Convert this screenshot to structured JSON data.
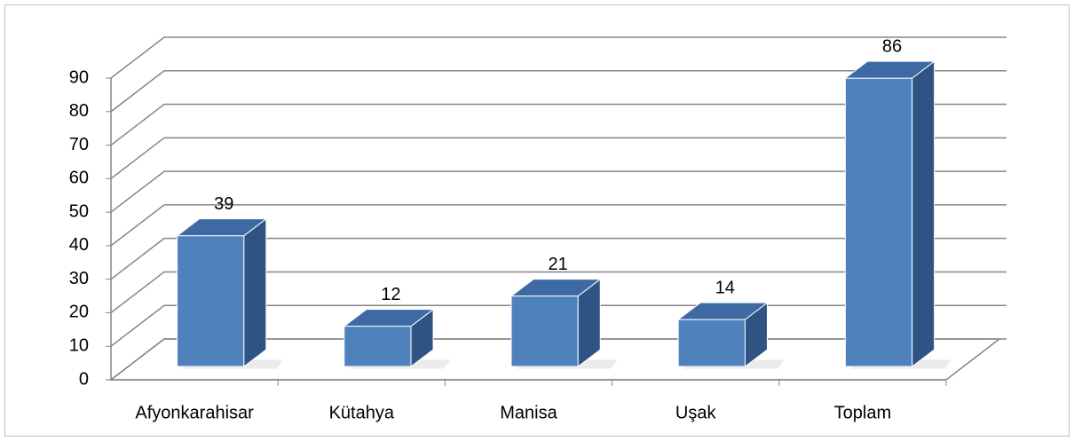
{
  "chart_data": {
    "type": "bar3d",
    "categories": [
      "Afyonkarahisar",
      "Kütahya",
      "Manisa",
      "Uşak",
      "Toplam"
    ],
    "values": [
      39,
      12,
      21,
      14,
      86
    ],
    "color": "#4f81bd",
    "ylim": [
      0,
      90
    ],
    "yticks": [
      0,
      10,
      20,
      30,
      40,
      50,
      60,
      70,
      80,
      90
    ],
    "grid": true
  }
}
